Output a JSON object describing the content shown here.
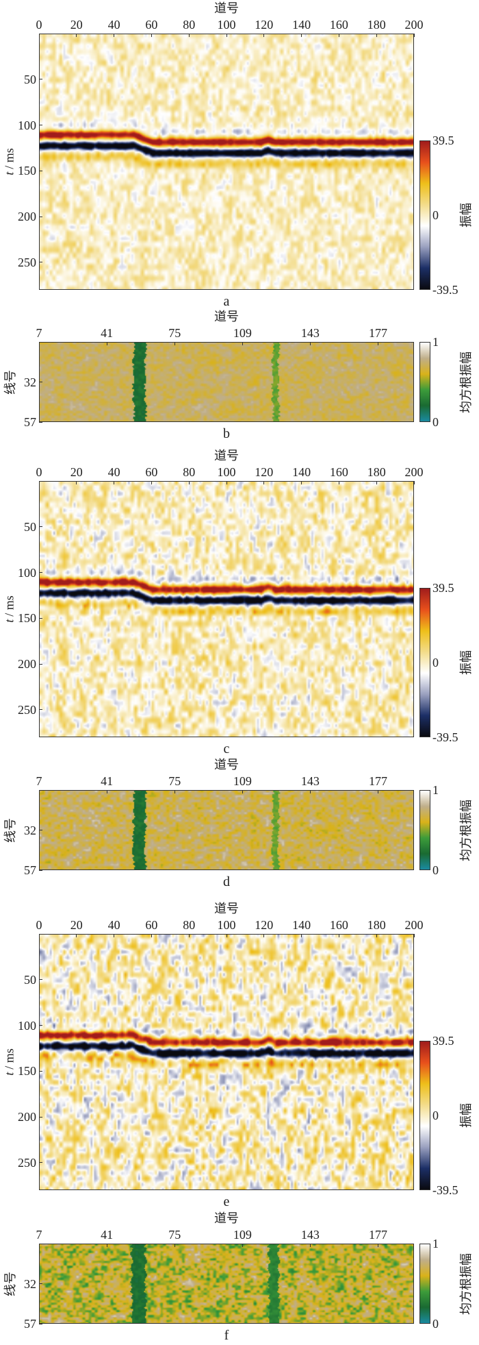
{
  "chart_data": [
    {
      "label": "a",
      "type": "heatmap",
      "xlabel": "道号",
      "ylabel_var": "t",
      "ylabel_unit": "/ ms",
      "xlim": [
        0,
        200
      ],
      "ylim": [
        0,
        280
      ],
      "xticks": [
        "0",
        "20",
        "40",
        "60",
        "80",
        "100",
        "120",
        "140",
        "160",
        "180",
        "200"
      ],
      "yticks": [
        "50",
        "100",
        "150",
        "200",
        "250"
      ],
      "colorbar": {
        "label": "振幅",
        "min": -39.5,
        "max": 39.5,
        "ticks": [
          "39.5",
          "0",
          "-39.5"
        ]
      },
      "horizon_peak_ms": {
        "traces": [
          0,
          50,
          60,
          118,
          122,
          126,
          200
        ],
        "times": [
          110,
          110,
          118,
          118,
          115,
          118,
          118
        ]
      },
      "noise_amplitude": 9
    },
    {
      "label": "b",
      "type": "heatmap",
      "xlabel": "道号",
      "ylabel": "线号",
      "xlim": [
        7,
        195
      ],
      "ylim": [
        7,
        57
      ],
      "xticks": [
        "7",
        "41",
        "75",
        "109",
        "143",
        "177"
      ],
      "yticks": [
        "32",
        "57"
      ],
      "colorbar": {
        "label": "均方根振幅",
        "min": 0,
        "max": 1,
        "ticks": [
          "1",
          "0"
        ]
      },
      "anomalies": [
        {
          "traces": [
            54,
            60
          ],
          "value": 0.22
        },
        {
          "traces": [
            124,
            127
          ],
          "value": 0.45
        }
      ],
      "background_value": 0.72,
      "noise_amplitude": 0.08
    },
    {
      "label": "c",
      "type": "heatmap",
      "xlabel": "道号",
      "ylabel_var": "t",
      "ylabel_unit": "/ ms",
      "xlim": [
        0,
        200
      ],
      "ylim": [
        0,
        280
      ],
      "xticks": [
        "0",
        "20",
        "40",
        "60",
        "80",
        "100",
        "120",
        "140",
        "160",
        "180",
        "200"
      ],
      "yticks": [
        "50",
        "100",
        "150",
        "200",
        "250"
      ],
      "colorbar": {
        "label": "振幅",
        "min": -39.5,
        "max": 39.5,
        "ticks": [
          "39.5",
          "0",
          "-39.5"
        ]
      },
      "horizon_peak_ms": {
        "traces": [
          0,
          50,
          60,
          118,
          122,
          126,
          200
        ],
        "times": [
          110,
          110,
          118,
          118,
          115,
          118,
          118
        ]
      },
      "noise_amplitude": 13
    },
    {
      "label": "d",
      "type": "heatmap",
      "xlabel": "道号",
      "ylabel": "线号",
      "xlim": [
        7,
        195
      ],
      "ylim": [
        7,
        57
      ],
      "xticks": [
        "7",
        "41",
        "75",
        "109",
        "143",
        "177"
      ],
      "yticks": [
        "32",
        "57"
      ],
      "colorbar": {
        "label": "均方根振幅",
        "min": 0,
        "max": 1,
        "ticks": [
          "1",
          "0"
        ]
      },
      "anomalies": [
        {
          "traces": [
            54,
            60
          ],
          "value": 0.22
        },
        {
          "traces": [
            124,
            127
          ],
          "value": 0.45
        }
      ],
      "background_value": 0.7,
      "noise_amplitude": 0.12
    },
    {
      "label": "e",
      "type": "heatmap",
      "xlabel": "道号",
      "ylabel_var": "t",
      "ylabel_unit": "/ ms",
      "xlim": [
        0,
        200
      ],
      "ylim": [
        0,
        280
      ],
      "xticks": [
        "0",
        "20",
        "40",
        "60",
        "80",
        "100",
        "120",
        "140",
        "160",
        "180",
        "200"
      ],
      "yticks": [
        "50",
        "100",
        "150",
        "200",
        "250"
      ],
      "colorbar": {
        "label": "振幅",
        "min": -39.5,
        "max": 39.5,
        "ticks": [
          "39.5",
          "0",
          "-39.5"
        ]
      },
      "horizon_peak_ms": {
        "traces": [
          0,
          50,
          60,
          118,
          122,
          126,
          200
        ],
        "times": [
          110,
          110,
          118,
          118,
          115,
          118,
          118
        ]
      },
      "noise_amplitude": 17
    },
    {
      "label": "f",
      "type": "heatmap",
      "xlabel": "道号",
      "ylabel": "线号",
      "xlim": [
        7,
        195
      ],
      "ylim": [
        7,
        57
      ],
      "xticks": [
        "7",
        "41",
        "75",
        "109",
        "143",
        "177"
      ],
      "yticks": [
        "32",
        "57"
      ],
      "colorbar": {
        "label": "均方根振幅",
        "min": 0,
        "max": 1,
        "ticks": [
          "1",
          "0"
        ]
      },
      "anomalies": [
        {
          "traces": [
            53,
            60
          ],
          "value": 0.22
        },
        {
          "traces": [
            122,
            127
          ],
          "value": 0.3
        }
      ],
      "background_value": 0.6,
      "noise_amplitude": 0.2
    }
  ],
  "colors": {
    "seismic": [
      "#0a0a10",
      "#1c2f66",
      "#9aa0bf",
      "#ffffff",
      "#f3dc8a",
      "#eebf1a",
      "#e8501c",
      "#a01c1c"
    ],
    "rms": [
      "#1a8aa0",
      "#1a6a32",
      "#3d9c3a",
      "#d9b21a",
      "#bfae8a",
      "#ffffff"
    ]
  }
}
